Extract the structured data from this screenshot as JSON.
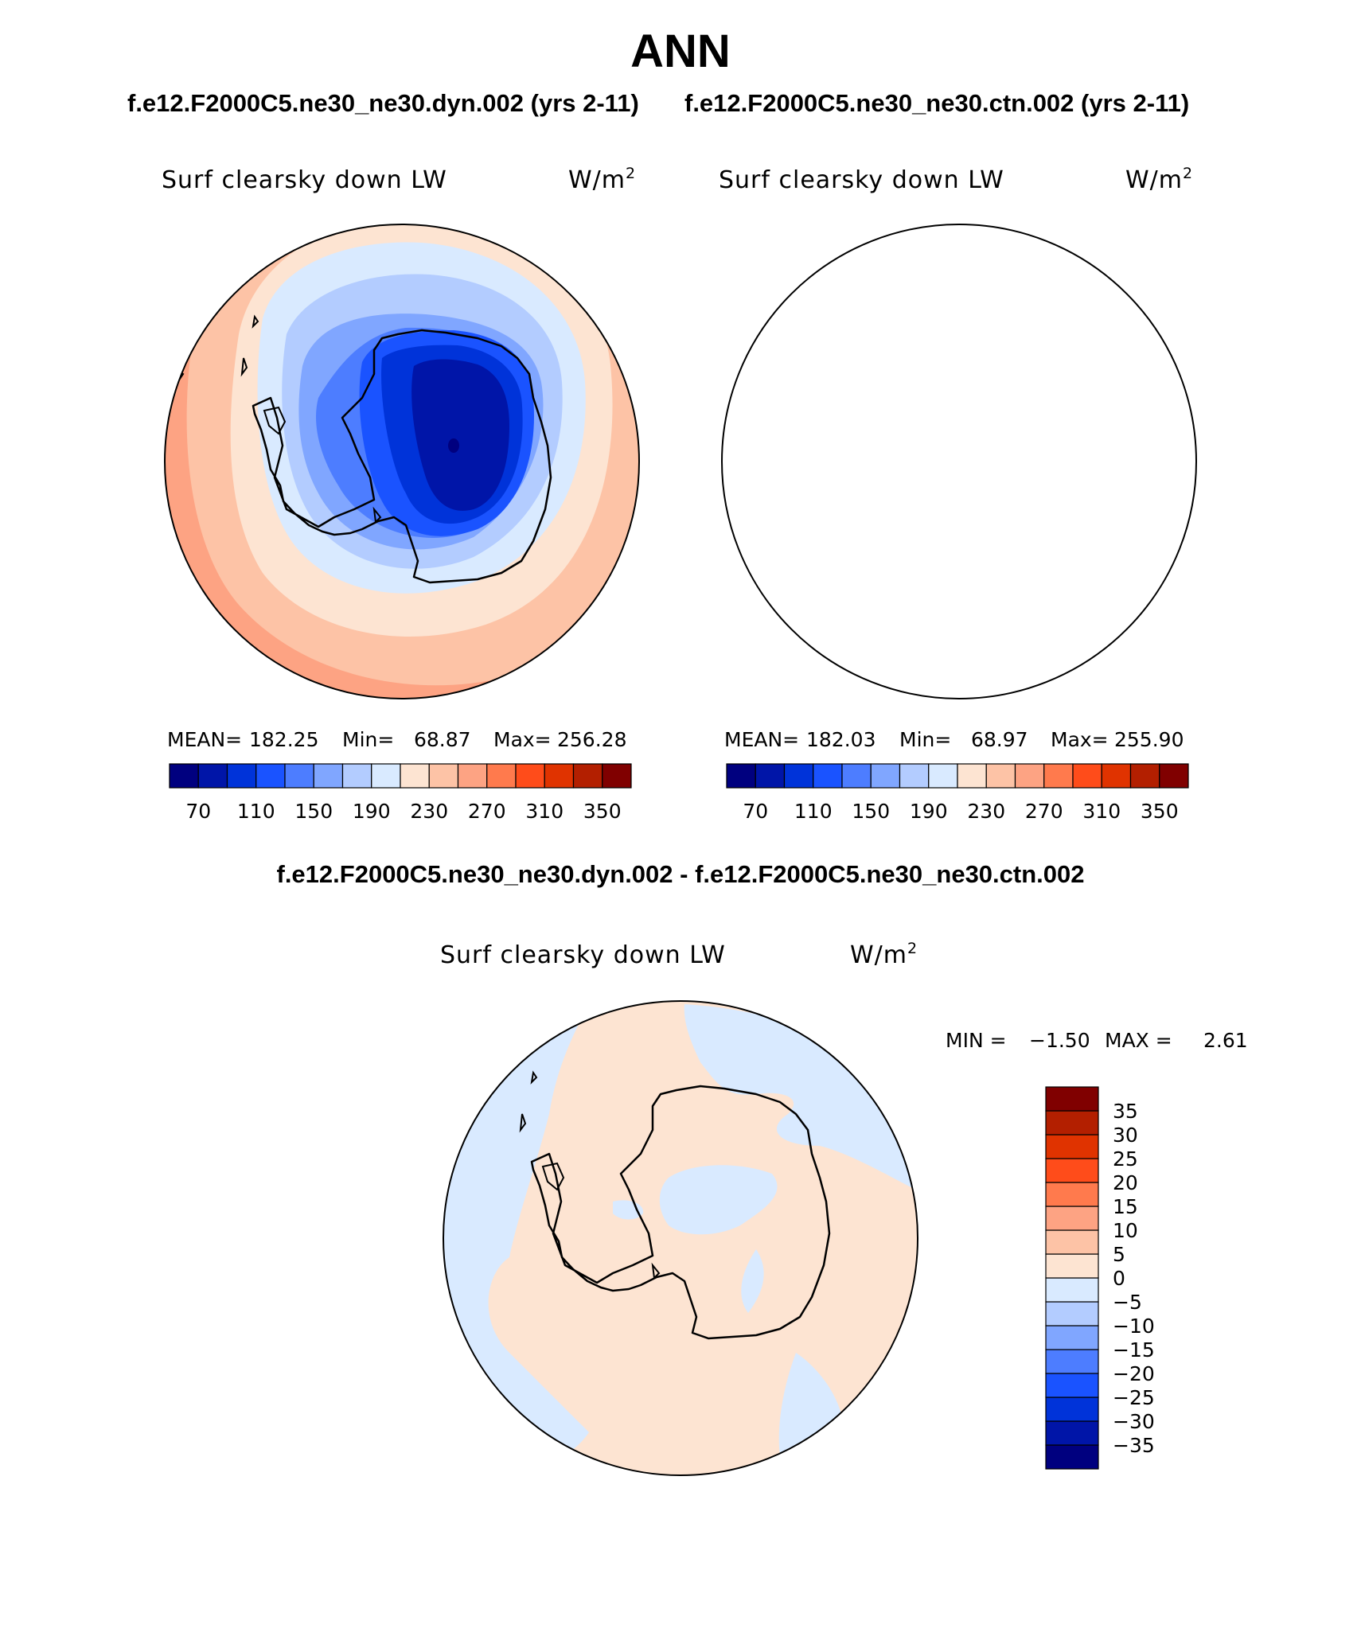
{
  "main_title": "ANN",
  "case_header": {
    "left": "f.e12.F2000C5.ne30_ne30.dyn.002 (yrs 2-11)",
    "right": "f.e12.F2000C5.ne30_ne30.ctn.002 (yrs 2-11)"
  },
  "diff_header": "f.e12.F2000C5.ne30_ne30.dyn.002 - f.e12.F2000C5.ne30_ne30.ctn.002",
  "colors": {
    "levels": [
      "#00007f",
      "#0015a8",
      "#0033d9",
      "#1a53ff",
      "#4d7dff",
      "#80a6ff",
      "#b3ccff",
      "#d9eaff",
      "#fde4d2",
      "#fdc3a6",
      "#fda383",
      "#ff7a4d",
      "#ff4c1a",
      "#e03300",
      "#b31f00",
      "#800000"
    ]
  },
  "panels": [
    {
      "id": "dyn",
      "var_label": "Surf clearsky down LW",
      "units_base": "W/m",
      "units_exp": "2",
      "stats": {
        "mean_label": "MEAN=",
        "mean": "182.25",
        "min_label": "Min=",
        "min": "68.87",
        "max_label": "Max=",
        "max": "256.28"
      },
      "colorbar_ticks": [
        "70",
        "110",
        "150",
        "190",
        "230",
        "270",
        "310",
        "350"
      ]
    },
    {
      "id": "ctn",
      "var_label": "Surf clearsky down LW",
      "units_base": "W/m",
      "units_exp": "2",
      "stats": {
        "mean_label": "MEAN=",
        "mean": "182.03",
        "min_label": "Min=",
        "min": "68.97",
        "max_label": "Max=",
        "max": "255.90"
      },
      "colorbar_ticks": [
        "70",
        "110",
        "150",
        "190",
        "230",
        "270",
        "310",
        "350"
      ]
    },
    {
      "id": "diff",
      "var_label": "Surf clearsky down LW",
      "units_base": "W/m",
      "units_exp": "2",
      "stats": {
        "min_label": "MIN =",
        "min": "−1.50",
        "max_label": "MAX =",
        "max": "2.61"
      },
      "colorbar_ticks": [
        "35",
        "30",
        "25",
        "20",
        "15",
        "10",
        "5",
        "0",
        "−5",
        "−10",
        "−15",
        "−20",
        "−25",
        "−30",
        "−35"
      ]
    }
  ]
}
